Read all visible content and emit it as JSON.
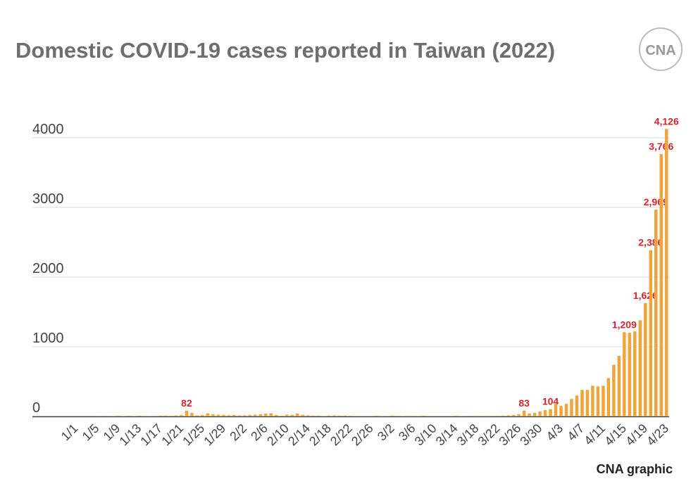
{
  "chart_data": {
    "type": "bar",
    "title": "Domestic COVID-19 cases reported in Taiwan (2022)",
    "logo": "CNA",
    "source": "CNA graphic",
    "categories": [
      "1/1",
      null,
      null,
      null,
      "1/5",
      null,
      null,
      null,
      "1/9",
      null,
      null,
      null,
      "1/13",
      null,
      null,
      null,
      "1/17",
      null,
      null,
      null,
      "1/21",
      null,
      null,
      null,
      "1/25",
      null,
      null,
      null,
      "1/29",
      null,
      null,
      null,
      "2/2",
      null,
      null,
      null,
      "2/6",
      null,
      null,
      null,
      "2/10",
      null,
      null,
      null,
      "2/14",
      null,
      null,
      null,
      "2/18",
      null,
      null,
      null,
      "2/22",
      null,
      null,
      null,
      "2/26",
      null,
      null,
      null,
      "3/2",
      null,
      null,
      null,
      "3/6",
      null,
      null,
      null,
      "3/10",
      null,
      null,
      null,
      "3/14",
      null,
      null,
      null,
      "3/18",
      null,
      null,
      null,
      "3/22",
      null,
      null,
      null,
      "3/26",
      null,
      null,
      null,
      "3/30",
      null,
      null,
      null,
      "4/3",
      null,
      null,
      null,
      "4/7",
      null,
      null,
      null,
      "4/11",
      null,
      null,
      null,
      "4/15",
      null,
      null,
      null,
      "4/19",
      null,
      null,
      null,
      "4/23"
    ],
    "values": [
      0,
      0,
      1,
      0,
      2,
      0,
      1,
      3,
      8,
      4,
      9,
      3,
      10,
      6,
      5,
      7,
      10,
      12,
      9,
      14,
      20,
      82,
      50,
      15,
      20,
      45,
      30,
      25,
      22,
      18,
      20,
      15,
      16,
      20,
      25,
      30,
      40,
      45,
      20,
      8,
      25,
      20,
      40,
      22,
      15,
      12,
      10,
      5,
      12,
      14,
      10,
      12,
      8,
      5,
      4,
      3,
      6,
      10,
      3,
      4,
      12,
      8,
      5,
      3,
      2,
      4,
      10,
      3,
      2,
      6,
      3,
      4,
      8,
      5,
      2,
      1,
      3,
      2,
      4,
      1,
      8,
      10,
      15,
      20,
      30,
      83,
      40,
      50,
      70,
      90,
      104,
      180,
      150,
      180,
      250,
      300,
      380,
      380,
      440,
      430,
      440,
      550,
      740,
      870,
      1209,
      1200,
      1220,
      1380,
      1626,
      2386,
      2969,
      3766,
      4126
    ],
    "value_labels": [
      null,
      null,
      null,
      null,
      null,
      null,
      null,
      null,
      null,
      null,
      null,
      null,
      null,
      null,
      null,
      null,
      null,
      null,
      null,
      null,
      null,
      "82",
      null,
      null,
      null,
      null,
      null,
      null,
      null,
      null,
      null,
      null,
      null,
      null,
      null,
      null,
      null,
      null,
      null,
      null,
      null,
      null,
      null,
      null,
      null,
      null,
      null,
      null,
      null,
      null,
      null,
      null,
      null,
      null,
      null,
      null,
      null,
      null,
      null,
      null,
      null,
      null,
      null,
      null,
      null,
      null,
      null,
      null,
      null,
      null,
      null,
      null,
      null,
      null,
      null,
      null,
      null,
      null,
      null,
      null,
      null,
      null,
      null,
      null,
      null,
      "83",
      null,
      null,
      null,
      null,
      "104",
      null,
      null,
      null,
      null,
      null,
      null,
      null,
      null,
      null,
      null,
      null,
      null,
      null,
      "1,209",
      null,
      null,
      null,
      "1,626",
      "2,386",
      "2,969",
      "3,766",
      "4,126"
    ],
    "color": "#f0a43a",
    "label_color": "#d8232a",
    "ylim": [
      0,
      4200
    ],
    "yticks": [
      0,
      1000,
      2000,
      3000,
      4000
    ],
    "grid": true
  }
}
